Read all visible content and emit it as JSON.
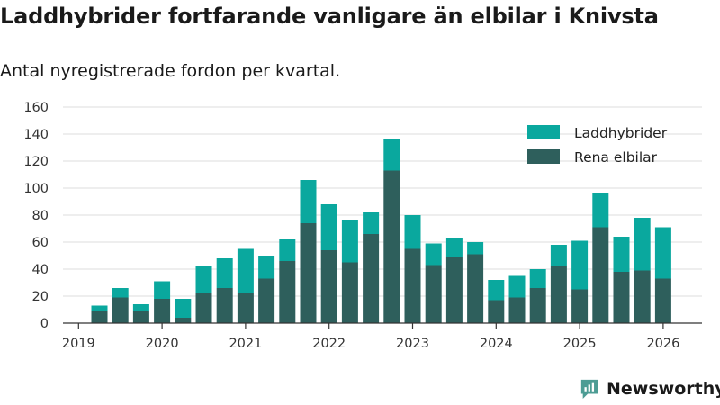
{
  "title": "Laddhybrider fortfarande vanligare än elbilar i Knivsta",
  "subtitle": "Antal nyregistrerade fordon per kvartal.",
  "brand": "Newsworthy",
  "colors": {
    "laddhybrider": "#0aa89e",
    "elbilar": "#2e5f5c",
    "brand": "#4d9c94",
    "grid": "#dddddd",
    "axis": "#333333"
  },
  "chart_data": {
    "type": "bar",
    "stacked": true,
    "x_start": "2019-Q2",
    "categories": [
      "2019-Q2",
      "2019-Q3",
      "2019-Q4",
      "2020-Q1",
      "2020-Q2",
      "2020-Q3",
      "2020-Q4",
      "2021-Q1",
      "2021-Q2",
      "2021-Q3",
      "2021-Q4",
      "2022-Q1",
      "2022-Q2",
      "2022-Q3",
      "2022-Q4",
      "2023-Q1",
      "2023-Q2",
      "2023-Q3",
      "2023-Q4",
      "2024-Q1",
      "2024-Q2",
      "2024-Q3",
      "2024-Q4",
      "2025-Q1",
      "2025-Q2",
      "2025-Q3",
      "2025-Q4",
      "2026-Q1"
    ],
    "series": [
      {
        "name": "Rena elbilar",
        "color": "#2e5f5c",
        "values": [
          9,
          19,
          9,
          18,
          4,
          22,
          26,
          22,
          33,
          46,
          74,
          54,
          45,
          66,
          113,
          55,
          43,
          49,
          51,
          17,
          19,
          26,
          42,
          25,
          71,
          38,
          39,
          33
        ]
      },
      {
        "name": "Laddhybrider",
        "color": "#0aa89e",
        "values": [
          4,
          7,
          5,
          13,
          14,
          20,
          22,
          33,
          17,
          16,
          32,
          34,
          31,
          16,
          23,
          25,
          16,
          14,
          9,
          15,
          16,
          14,
          16,
          36,
          25,
          26,
          39,
          38
        ]
      }
    ],
    "xlabel": "",
    "ylabel": "",
    "ylim": [
      0,
      160
    ],
    "yticks": [
      0,
      20,
      40,
      60,
      80,
      100,
      120,
      140,
      160
    ],
    "xticks": [
      "2019",
      "2020",
      "2021",
      "2022",
      "2023",
      "2024",
      "2025",
      "2026"
    ],
    "grid": true,
    "legend_position": "top-right",
    "legend": [
      "Laddhybrider",
      "Rena elbilar"
    ]
  }
}
